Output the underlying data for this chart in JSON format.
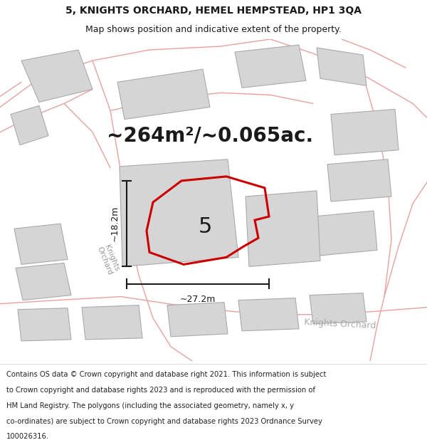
{
  "title_line1": "5, KNIGHTS ORCHARD, HEMEL HEMPSTEAD, HP1 3QA",
  "title_line2": "Map shows position and indicative extent of the property.",
  "area_label": "~264m²/~0.065ac.",
  "property_number": "5",
  "dim_height": "~18.2m",
  "dim_width": "~27.2m",
  "footer_lines": [
    "Contains OS data © Crown copyright and database right 2021. This information is subject",
    "to Crown copyright and database rights 2023 and is reproduced with the permission of",
    "HM Land Registry. The polygons (including the associated geometry, namely x, y",
    "co-ordinates) are subject to Crown copyright and database rights 2023 Ordnance Survey",
    "100026316."
  ],
  "map_bg": "#eeecec",
  "road_color": "#e8a0a0",
  "building_color": "#d5d5d5",
  "building_edge": "#aaaaaa",
  "property_outline_color": "#cc0000",
  "dim_line_color": "#1a1a1a",
  "text_color": "#1a1a1a",
  "title_fontsize": 10,
  "subtitle_fontsize": 9,
  "area_fontsize": 20,
  "footer_fontsize": 7.2
}
